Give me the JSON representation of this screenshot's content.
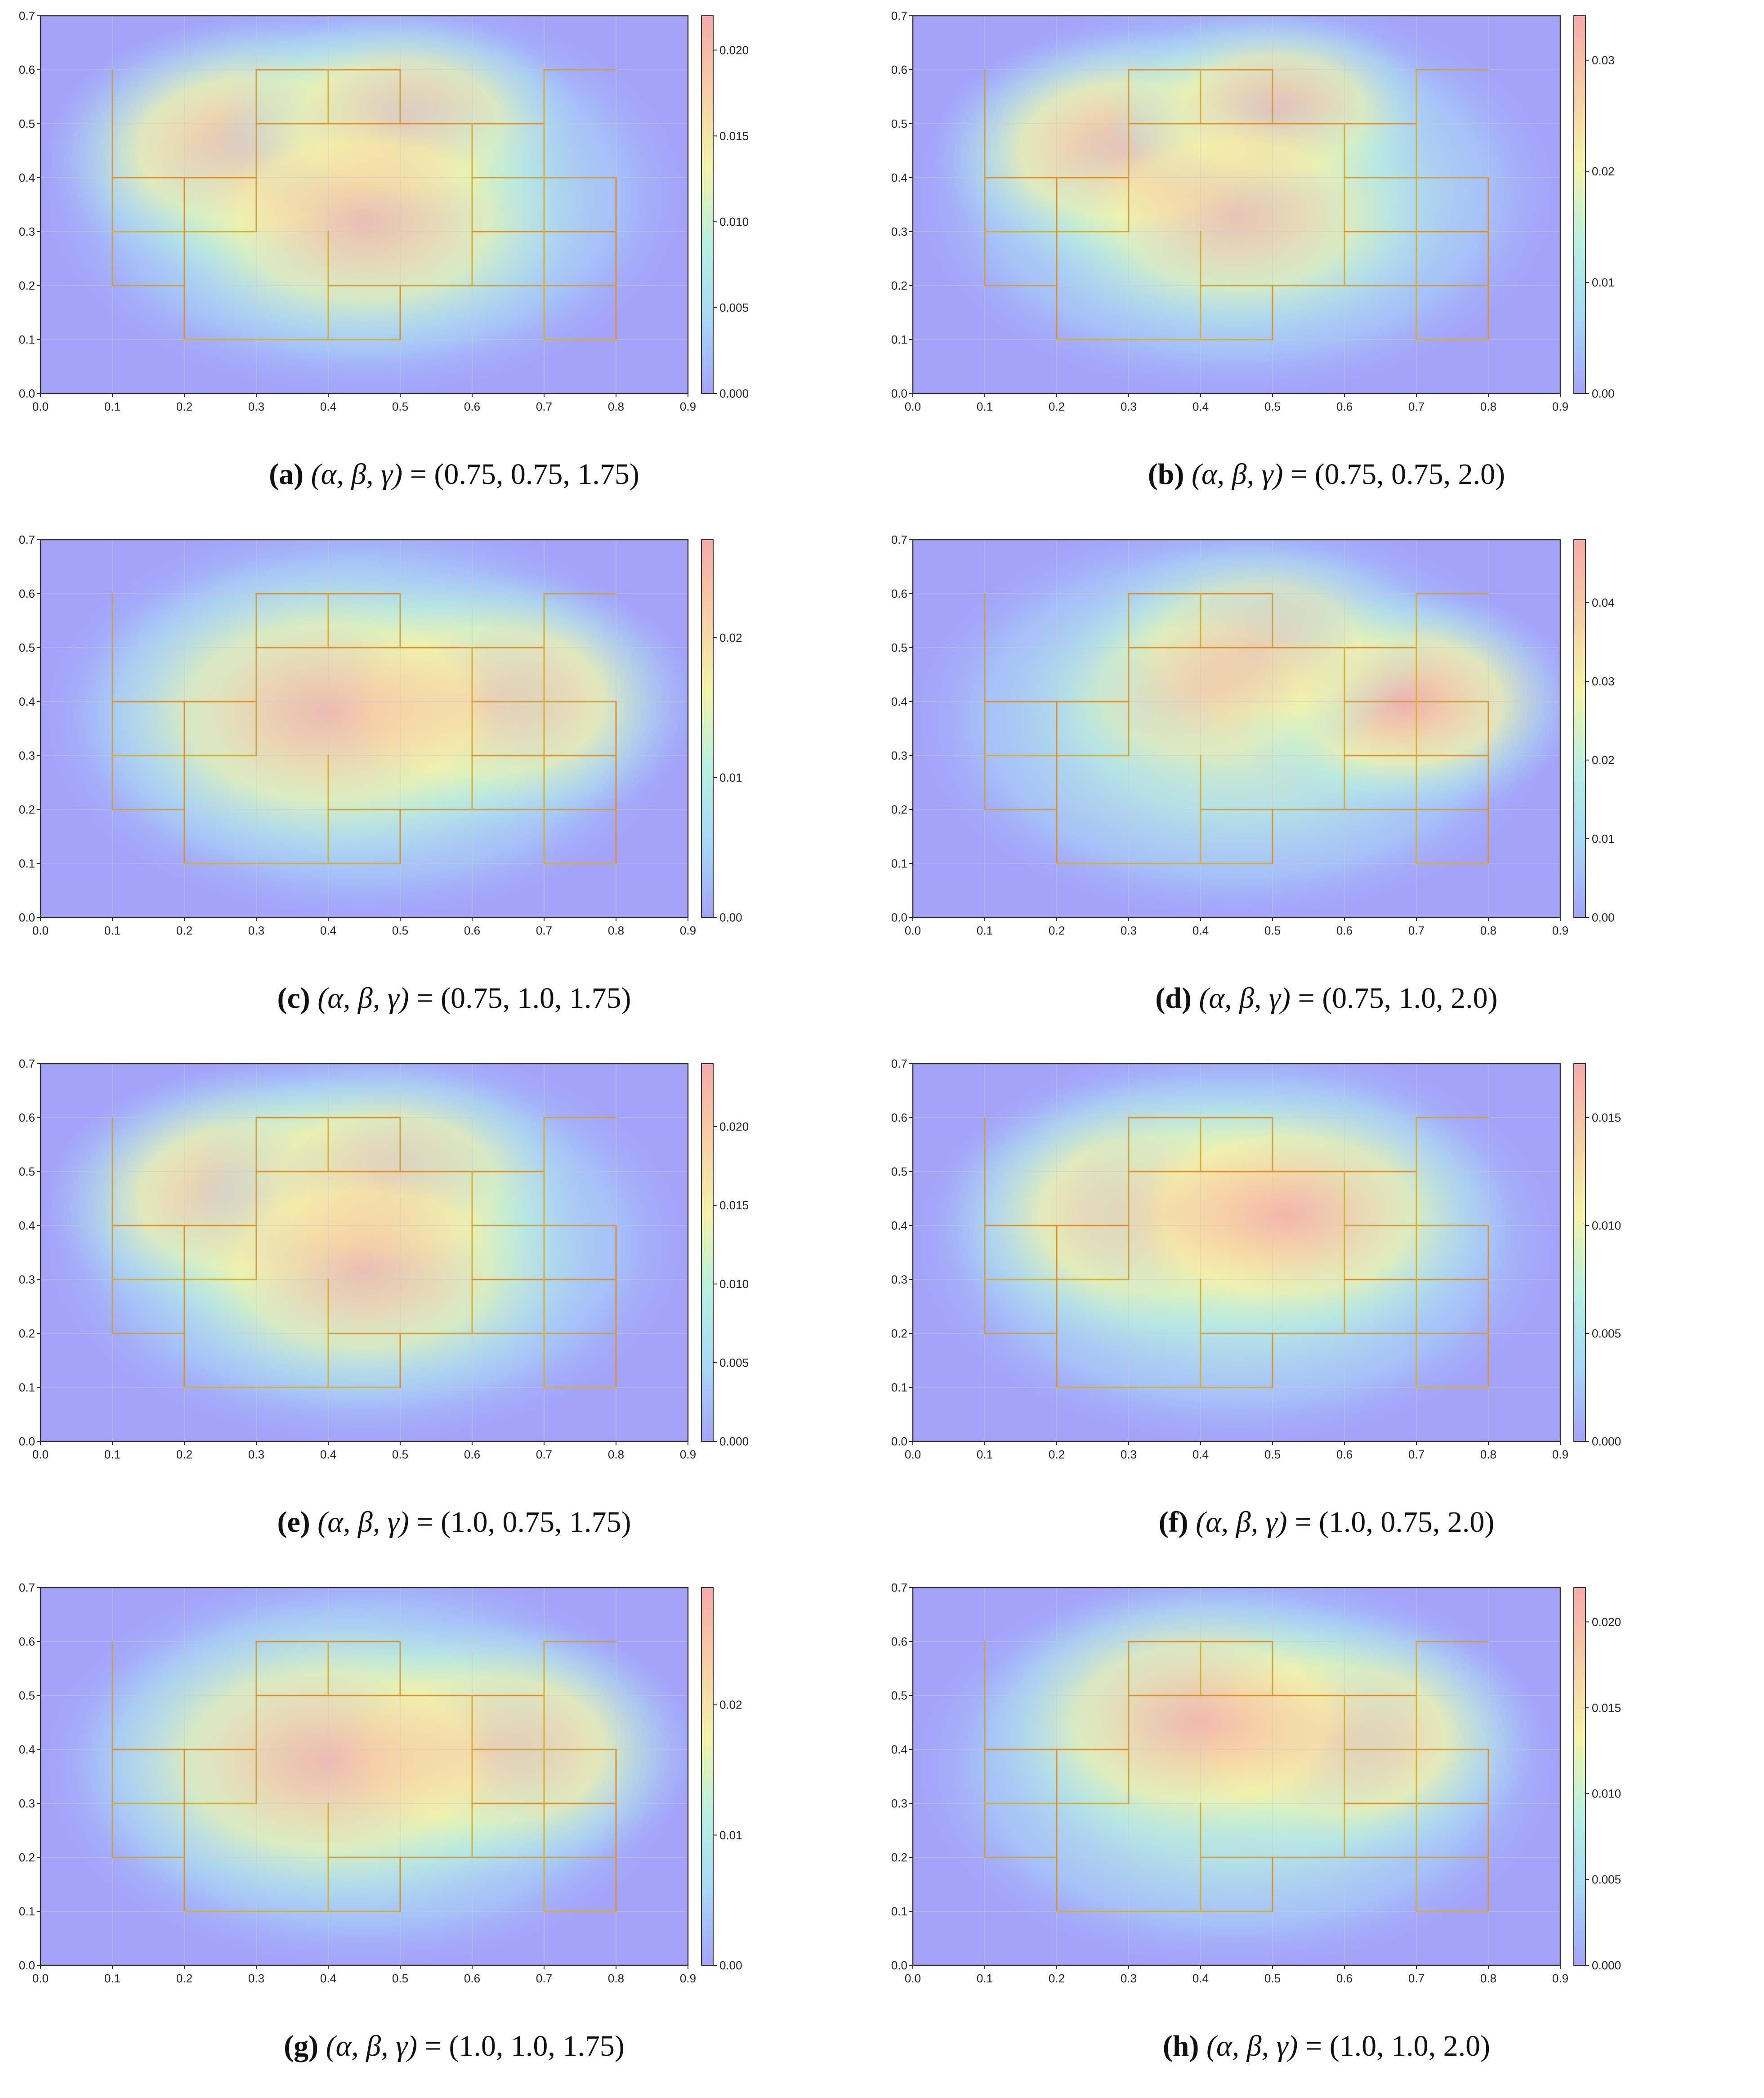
{
  "chart_data": [
    {
      "type": "heatmap",
      "id": "a",
      "letter": "(a)",
      "params": "(0.75, 0.75, 1.75)",
      "xlim": [
        0,
        0.9
      ],
      "ylim": [
        0,
        0.7
      ],
      "xticks": [
        "0.0",
        "0.1",
        "0.2",
        "0.3",
        "0.4",
        "0.5",
        "0.6",
        "0.7",
        "0.8",
        "0.9"
      ],
      "yticks": [
        "0.0",
        "0.1",
        "0.2",
        "0.3",
        "0.4",
        "0.5",
        "0.6",
        "0.7"
      ],
      "colorbar": {
        "min": 0,
        "max": 0.022,
        "ticks": [
          "0.000",
          "0.005",
          "0.010",
          "0.015",
          "0.020"
        ],
        "tick_values": [
          0,
          0.005,
          0.01,
          0.015,
          0.02
        ]
      },
      "hotspots": [
        {
          "x": 0.3,
          "y": 0.45,
          "w": 1.0,
          "s": 0.14
        },
        {
          "x": 0.5,
          "y": 0.5,
          "w": 0.85,
          "s": 0.12
        },
        {
          "x": 0.45,
          "y": 0.32,
          "w": 0.75,
          "s": 0.15
        }
      ]
    },
    {
      "type": "heatmap",
      "id": "b",
      "letter": "(b)",
      "params": "(0.75, 0.75, 2.0)",
      "xlim": [
        0,
        0.9
      ],
      "ylim": [
        0,
        0.7
      ],
      "xticks": [
        "0.0",
        "0.1",
        "0.2",
        "0.3",
        "0.4",
        "0.5",
        "0.6",
        "0.7",
        "0.8",
        "0.9"
      ],
      "yticks": [
        "0.0",
        "0.1",
        "0.2",
        "0.3",
        "0.4",
        "0.5",
        "0.6",
        "0.7"
      ],
      "colorbar": {
        "min": 0,
        "max": 0.034,
        "ticks": [
          "0.00",
          "0.01",
          "0.02",
          "0.03"
        ],
        "tick_values": [
          0,
          0.01,
          0.02,
          0.03
        ]
      },
      "hotspots": [
        {
          "x": 0.3,
          "y": 0.45,
          "w": 1.0,
          "s": 0.13
        },
        {
          "x": 0.5,
          "y": 0.52,
          "w": 0.85,
          "s": 0.11
        },
        {
          "x": 0.45,
          "y": 0.33,
          "w": 0.65,
          "s": 0.14
        }
      ]
    },
    {
      "type": "heatmap",
      "id": "c",
      "letter": "(c)",
      "params": "(0.75, 1.0, 1.75)",
      "xlim": [
        0,
        0.9
      ],
      "ylim": [
        0,
        0.7
      ],
      "xticks": [
        "0.0",
        "0.1",
        "0.2",
        "0.3",
        "0.4",
        "0.5",
        "0.6",
        "0.7",
        "0.8",
        "0.9"
      ],
      "yticks": [
        "0.0",
        "0.1",
        "0.2",
        "0.3",
        "0.4",
        "0.5",
        "0.6",
        "0.7"
      ],
      "colorbar": {
        "min": 0,
        "max": 0.027,
        "ticks": [
          "0.00",
          "0.01",
          "0.02"
        ],
        "tick_values": [
          0,
          0.01,
          0.02
        ]
      },
      "hotspots": [
        {
          "x": 0.62,
          "y": 0.4,
          "w": 1.0,
          "s": 0.14
        },
        {
          "x": 0.4,
          "y": 0.38,
          "w": 0.8,
          "s": 0.17
        }
      ]
    },
    {
      "type": "heatmap",
      "id": "d",
      "letter": "(d)",
      "params": "(0.75, 1.0, 2.0)",
      "xlim": [
        0,
        0.9
      ],
      "ylim": [
        0,
        0.7
      ],
      "xticks": [
        "0.0",
        "0.1",
        "0.2",
        "0.3",
        "0.4",
        "0.5",
        "0.6",
        "0.7",
        "0.8",
        "0.9"
      ],
      "yticks": [
        "0.0",
        "0.1",
        "0.2",
        "0.3",
        "0.4",
        "0.5",
        "0.6",
        "0.7"
      ],
      "colorbar": {
        "min": 0,
        "max": 0.048,
        "ticks": [
          "0.00",
          "0.01",
          "0.02",
          "0.03",
          "0.04"
        ],
        "tick_values": [
          0,
          0.01,
          0.02,
          0.03,
          0.04
        ]
      },
      "hotspots": [
        {
          "x": 0.68,
          "y": 0.4,
          "w": 1.0,
          "s": 0.12
        },
        {
          "x": 0.48,
          "y": 0.5,
          "w": 0.7,
          "s": 0.12
        },
        {
          "x": 0.4,
          "y": 0.42,
          "w": 0.45,
          "s": 0.12
        }
      ]
    },
    {
      "type": "heatmap",
      "id": "e",
      "letter": "(e)",
      "params": "(1.0, 0.75, 1.75)",
      "xlim": [
        0,
        0.9
      ],
      "ylim": [
        0,
        0.7
      ],
      "xticks": [
        "0.0",
        "0.1",
        "0.2",
        "0.3",
        "0.4",
        "0.5",
        "0.6",
        "0.7",
        "0.8",
        "0.9"
      ],
      "yticks": [
        "0.0",
        "0.1",
        "0.2",
        "0.3",
        "0.4",
        "0.5",
        "0.6",
        "0.7"
      ],
      "colorbar": {
        "min": 0,
        "max": 0.024,
        "ticks": [
          "0.000",
          "0.005",
          "0.010",
          "0.015",
          "0.020"
        ],
        "tick_values": [
          0,
          0.005,
          0.01,
          0.015,
          0.02
        ]
      },
      "hotspots": [
        {
          "x": 0.3,
          "y": 0.45,
          "w": 1.0,
          "s": 0.14
        },
        {
          "x": 0.48,
          "y": 0.48,
          "w": 0.85,
          "s": 0.13
        },
        {
          "x": 0.45,
          "y": 0.32,
          "w": 0.75,
          "s": 0.15
        }
      ]
    },
    {
      "type": "heatmap",
      "id": "f",
      "letter": "(f)",
      "params": "(1.0, 0.75, 2.0)",
      "xlim": [
        0,
        0.9
      ],
      "ylim": [
        0,
        0.7
      ],
      "xticks": [
        "0.0",
        "0.1",
        "0.2",
        "0.3",
        "0.4",
        "0.5",
        "0.6",
        "0.7",
        "0.8",
        "0.9"
      ],
      "yticks": [
        "0.0",
        "0.1",
        "0.2",
        "0.3",
        "0.4",
        "0.5",
        "0.6",
        "0.7"
      ],
      "colorbar": {
        "min": 0,
        "max": 0.0175,
        "ticks": [
          "0.000",
          "0.005",
          "0.010",
          "0.015"
        ],
        "tick_values": [
          0,
          0.005,
          0.01,
          0.015
        ]
      },
      "hotspots": [
        {
          "x": 0.35,
          "y": 0.42,
          "w": 1.0,
          "s": 0.15
        },
        {
          "x": 0.52,
          "y": 0.42,
          "w": 0.9,
          "s": 0.15
        }
      ]
    },
    {
      "type": "heatmap",
      "id": "g",
      "letter": "(g)",
      "params": "(1.0, 1.0, 1.75)",
      "xlim": [
        0,
        0.9
      ],
      "ylim": [
        0,
        0.7
      ],
      "xticks": [
        "0.0",
        "0.1",
        "0.2",
        "0.3",
        "0.4",
        "0.5",
        "0.6",
        "0.7",
        "0.8",
        "0.9"
      ],
      "yticks": [
        "0.0",
        "0.1",
        "0.2",
        "0.3",
        "0.4",
        "0.5",
        "0.6",
        "0.7"
      ],
      "colorbar": {
        "min": 0,
        "max": 0.029,
        "ticks": [
          "0.00",
          "0.01",
          "0.02"
        ],
        "tick_values": [
          0,
          0.01,
          0.02
        ]
      },
      "hotspots": [
        {
          "x": 0.62,
          "y": 0.4,
          "w": 1.0,
          "s": 0.14
        },
        {
          "x": 0.4,
          "y": 0.38,
          "w": 0.8,
          "s": 0.17
        }
      ]
    },
    {
      "type": "heatmap",
      "id": "h",
      "letter": "(h)",
      "params": "(1.0, 1.0, 2.0)",
      "xlim": [
        0,
        0.9
      ],
      "ylim": [
        0,
        0.7
      ],
      "xticks": [
        "0.0",
        "0.1",
        "0.2",
        "0.3",
        "0.4",
        "0.5",
        "0.6",
        "0.7",
        "0.8",
        "0.9"
      ],
      "yticks": [
        "0.0",
        "0.1",
        "0.2",
        "0.3",
        "0.4",
        "0.5",
        "0.6",
        "0.7"
      ],
      "colorbar": {
        "min": 0,
        "max": 0.022,
        "ticks": [
          "0.000",
          "0.005",
          "0.010",
          "0.015",
          "0.020"
        ],
        "tick_values": [
          0,
          0.005,
          0.01,
          0.015,
          0.02
        ]
      },
      "hotspots": [
        {
          "x": 0.58,
          "y": 0.42,
          "w": 1.0,
          "s": 0.14
        },
        {
          "x": 0.4,
          "y": 0.45,
          "w": 0.85,
          "s": 0.15
        }
      ]
    }
  ],
  "caption_symbols": "(α, β, γ)",
  "caption_equals": "=",
  "colormap": [
    "#a3a3f9",
    "#a8d9f7",
    "#b8f0e1",
    "#f3f3aa",
    "#f7cfa5",
    "#f6aaaa"
  ],
  "grid_color": "#cccccc",
  "polygon_colors": [
    "#c8a34a",
    "#e0902a",
    "#d6b030"
  ],
  "polygons": [
    [
      [
        0.1,
        0.2
      ],
      [
        0.1,
        0.6
      ]
    ],
    [
      [
        0.1,
        0.4
      ],
      [
        0.3,
        0.4
      ]
    ],
    [
      [
        0.1,
        0.3
      ],
      [
        0.3,
        0.3
      ]
    ],
    [
      [
        0.1,
        0.2
      ],
      [
        0.2,
        0.2
      ]
    ],
    [
      [
        0.2,
        0.1
      ],
      [
        0.2,
        0.4
      ]
    ],
    [
      [
        0.2,
        0.1
      ],
      [
        0.5,
        0.1
      ]
    ],
    [
      [
        0.3,
        0.3
      ],
      [
        0.3,
        0.6
      ]
    ],
    [
      [
        0.3,
        0.6
      ],
      [
        0.5,
        0.6
      ]
    ],
    [
      [
        0.4,
        0.5
      ],
      [
        0.4,
        0.6
      ]
    ],
    [
      [
        0.5,
        0.5
      ],
      [
        0.5,
        0.6
      ]
    ],
    [
      [
        0.3,
        0.5
      ],
      [
        0.7,
        0.5
      ]
    ],
    [
      [
        0.4,
        0.1
      ],
      [
        0.4,
        0.3
      ]
    ],
    [
      [
        0.4,
        0.2
      ],
      [
        0.8,
        0.2
      ]
    ],
    [
      [
        0.5,
        0.1
      ],
      [
        0.5,
        0.2
      ]
    ],
    [
      [
        0.6,
        0.2
      ],
      [
        0.6,
        0.5
      ]
    ],
    [
      [
        0.6,
        0.4
      ],
      [
        0.8,
        0.4
      ]
    ],
    [
      [
        0.6,
        0.3
      ],
      [
        0.8,
        0.3
      ]
    ],
    [
      [
        0.7,
        0.1
      ],
      [
        0.7,
        0.6
      ]
    ],
    [
      [
        0.7,
        0.6
      ],
      [
        0.8,
        0.6
      ]
    ],
    [
      [
        0.8,
        0.1
      ],
      [
        0.8,
        0.4
      ]
    ],
    [
      [
        0.7,
        0.1
      ],
      [
        0.8,
        0.1
      ]
    ]
  ]
}
